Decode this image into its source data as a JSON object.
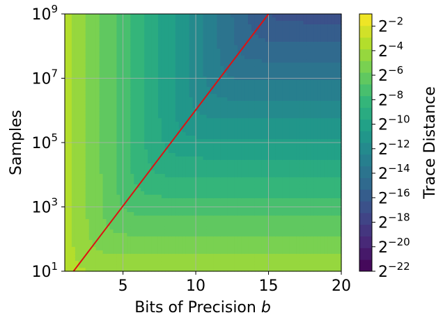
{
  "chart_data": {
    "type": "heatmap",
    "subtype": "filled-contour",
    "title": "",
    "xlabel": "Bits of Precision",
    "xlabel_symbol": "b",
    "ylabel": "Samples",
    "colorbar_label": "Trace Distance",
    "x_range": [
      1,
      20
    ],
    "y_range_log10": [
      1,
      9
    ],
    "y_scale": "log",
    "grid": true,
    "x_ticks": [
      {
        "value": 5,
        "label": "5"
      },
      {
        "value": 10,
        "label": "10"
      },
      {
        "value": 15,
        "label": "15"
      },
      {
        "value": 20,
        "label": "20"
      }
    ],
    "y_ticks": [
      {
        "exp": 1,
        "base": "10",
        "sup": "1"
      },
      {
        "exp": 3,
        "base": "10",
        "sup": "3"
      },
      {
        "exp": 5,
        "base": "10",
        "sup": "5"
      },
      {
        "exp": 7,
        "base": "10",
        "sup": "7"
      },
      {
        "exp": 9,
        "base": "10",
        "sup": "9"
      }
    ],
    "colorbar_levels_log2": [
      -22,
      -21,
      -20,
      -19,
      -18,
      -17,
      -16,
      -15,
      -14,
      -13,
      -12,
      -11,
      -10,
      -9,
      -8,
      -7,
      -6,
      -5,
      -4,
      -3,
      -2,
      -1
    ],
    "colorbar_ticks": [
      {
        "value": -2,
        "base": "2",
        "sup": "−2"
      },
      {
        "value": -4,
        "base": "2",
        "sup": "−4"
      },
      {
        "value": -6,
        "base": "2",
        "sup": "−6"
      },
      {
        "value": -8,
        "base": "2",
        "sup": "−8"
      },
      {
        "value": -10,
        "base": "2",
        "sup": "−10"
      },
      {
        "value": -12,
        "base": "2",
        "sup": "−12"
      },
      {
        "value": -14,
        "base": "2",
        "sup": "−14"
      },
      {
        "value": -16,
        "base": "2",
        "sup": "−16"
      },
      {
        "value": -18,
        "base": "2",
        "sup": "−18"
      },
      {
        "value": -20,
        "base": "2",
        "sup": "−20"
      },
      {
        "value": -22,
        "base": "2",
        "sup": "−22"
      }
    ],
    "colormap": "viridis",
    "colormap_stops": [
      "#440154",
      "#482878",
      "#3e4989",
      "#31688e",
      "#26828e",
      "#1f9e89",
      "#35b779",
      "#6ece58",
      "#b5de2b",
      "#fde725"
    ],
    "reference_line": {
      "color": "#dd1111",
      "points": [
        {
          "x": 1.6,
          "log10_samples": 1
        },
        {
          "x": 15,
          "log10_samples": 9
        }
      ]
    }
  }
}
